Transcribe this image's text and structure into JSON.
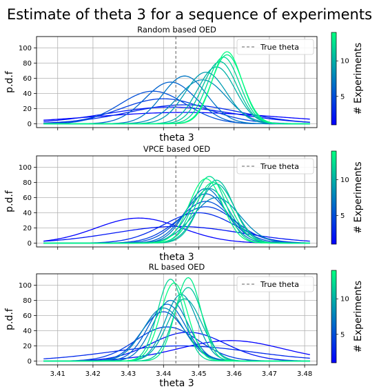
{
  "figure": {
    "title": "Estimate of theta 3 for a sequence of experiments"
  },
  "colorbar": {
    "label": "# Experiments",
    "ticks": [
      5,
      10
    ],
    "range": [
      1,
      14
    ],
    "color_low": "#0000ff",
    "color_high": "#00ff80"
  },
  "chart_data": [
    {
      "type": "line",
      "title": "Random based OED",
      "xlabel": "theta 3",
      "ylabel": "p.d.f",
      "xlim": [
        3.404,
        3.4835
      ],
      "ylim": [
        -5,
        115
      ],
      "yticks": [
        0,
        20,
        40,
        60,
        80,
        100
      ],
      "show_xticklabels": false,
      "grid": true,
      "legend": {
        "label": "True theta",
        "position": "top-right"
      },
      "true_theta": 3.4435,
      "series_note": "Gaussian-shaped pdf curves, one per number of experiments (1..14)",
      "curves": [
        {
          "n": 1,
          "mean": 3.446,
          "peak": 15
        },
        {
          "n": 2,
          "mean": 3.442,
          "peak": 22
        },
        {
          "n": 3,
          "mean": 3.446,
          "peak": 25
        },
        {
          "n": 4,
          "mean": 3.44,
          "peak": 33
        },
        {
          "n": 5,
          "mean": 3.437,
          "peak": 43
        },
        {
          "n": 6,
          "mean": 3.442,
          "peak": 55
        },
        {
          "n": 7,
          "mean": 3.446,
          "peak": 63
        },
        {
          "n": 8,
          "mean": 3.451,
          "peak": 58
        },
        {
          "n": 9,
          "mean": 3.452,
          "peak": 68
        },
        {
          "n": 10,
          "mean": 3.455,
          "peak": 75
        },
        {
          "n": 11,
          "mean": 3.456,
          "peak": 82
        },
        {
          "n": 12,
          "mean": 3.457,
          "peak": 88
        },
        {
          "n": 13,
          "mean": 3.458,
          "peak": 91
        },
        {
          "n": 14,
          "mean": 3.458,
          "peak": 95
        }
      ]
    },
    {
      "type": "line",
      "title": "VPCE based OED",
      "xlabel": "theta 3",
      "ylabel": "p.d.f",
      "xlim": [
        3.404,
        3.4835
      ],
      "ylim": [
        -5,
        115
      ],
      "yticks": [
        0,
        20,
        40,
        60,
        80,
        100
      ],
      "show_xticklabels": false,
      "grid": true,
      "legend": {
        "label": "True theta",
        "position": "top-right"
      },
      "true_theta": 3.4435,
      "curves": [
        {
          "n": 1,
          "mean": 3.433,
          "peak": 33
        },
        {
          "n": 2,
          "mean": 3.444,
          "peak": 22
        },
        {
          "n": 3,
          "mean": 3.45,
          "peak": 40
        },
        {
          "n": 4,
          "mean": 3.452,
          "peak": 48
        },
        {
          "n": 5,
          "mean": 3.452,
          "peak": 55
        },
        {
          "n": 6,
          "mean": 3.452,
          "peak": 65
        },
        {
          "n": 7,
          "mean": 3.452,
          "peak": 72
        },
        {
          "n": 8,
          "mean": 3.455,
          "peak": 60
        },
        {
          "n": 9,
          "mean": 3.453,
          "peak": 72
        },
        {
          "n": 10,
          "mean": 3.455,
          "peak": 78
        },
        {
          "n": 11,
          "mean": 3.455,
          "peak": 83
        },
        {
          "n": 12,
          "mean": 3.453,
          "peak": 88
        },
        {
          "n": 13,
          "mean": 3.454,
          "peak": 80
        },
        {
          "n": 14,
          "mean": 3.452,
          "peak": 85
        }
      ]
    },
    {
      "type": "line",
      "title": "RL based OED",
      "xlabel": "theta 3",
      "ylabel": "p.d.f",
      "xlim": [
        3.404,
        3.4835
      ],
      "ylim": [
        -5,
        115
      ],
      "yticks": [
        0,
        20,
        40,
        60,
        80,
        100
      ],
      "xticks": [
        3.41,
        3.42,
        3.43,
        3.44,
        3.45,
        3.46,
        3.47,
        3.48
      ],
      "show_xticklabels": true,
      "grid": true,
      "legend": {
        "label": "True theta",
        "position": "top-right"
      },
      "true_theta": 3.4435,
      "curves": [
        {
          "n": 1,
          "mean": 3.459,
          "peak": 27
        },
        {
          "n": 2,
          "mean": 3.447,
          "peak": 38
        },
        {
          "n": 3,
          "mean": 3.445,
          "peak": 20
        },
        {
          "n": 4,
          "mean": 3.441,
          "peak": 45
        },
        {
          "n": 5,
          "mean": 3.44,
          "peak": 65
        },
        {
          "n": 6,
          "mean": 3.441,
          "peak": 75
        },
        {
          "n": 7,
          "mean": 3.442,
          "peak": 80
        },
        {
          "n": 8,
          "mean": 3.44,
          "peak": 70
        },
        {
          "n": 9,
          "mean": 3.445,
          "peak": 88
        },
        {
          "n": 10,
          "mean": 3.446,
          "peak": 82
        },
        {
          "n": 11,
          "mean": 3.447,
          "peak": 97
        },
        {
          "n": 12,
          "mean": 3.442,
          "peak": 108
        },
        {
          "n": 13,
          "mean": 3.447,
          "peak": 110
        },
        {
          "n": 14,
          "mean": 3.443,
          "peak": 103
        }
      ]
    }
  ]
}
